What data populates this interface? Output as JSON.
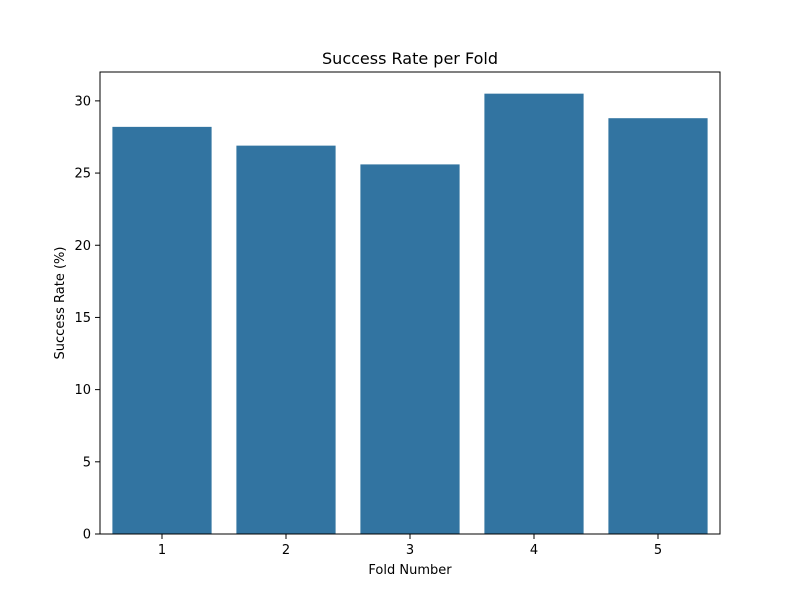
{
  "chart_data": {
    "type": "bar",
    "title": "Success Rate per Fold",
    "xlabel": "Fold Number",
    "ylabel": "Success Rate (%)",
    "categories": [
      "1",
      "2",
      "3",
      "4",
      "5"
    ],
    "values": [
      28.2,
      26.9,
      25.6,
      30.5,
      28.8
    ],
    "ylim": [
      0,
      32
    ],
    "yticks": [
      0,
      5,
      10,
      15,
      20,
      25,
      30
    ],
    "grid": false,
    "bar_color": "#3274a1"
  }
}
